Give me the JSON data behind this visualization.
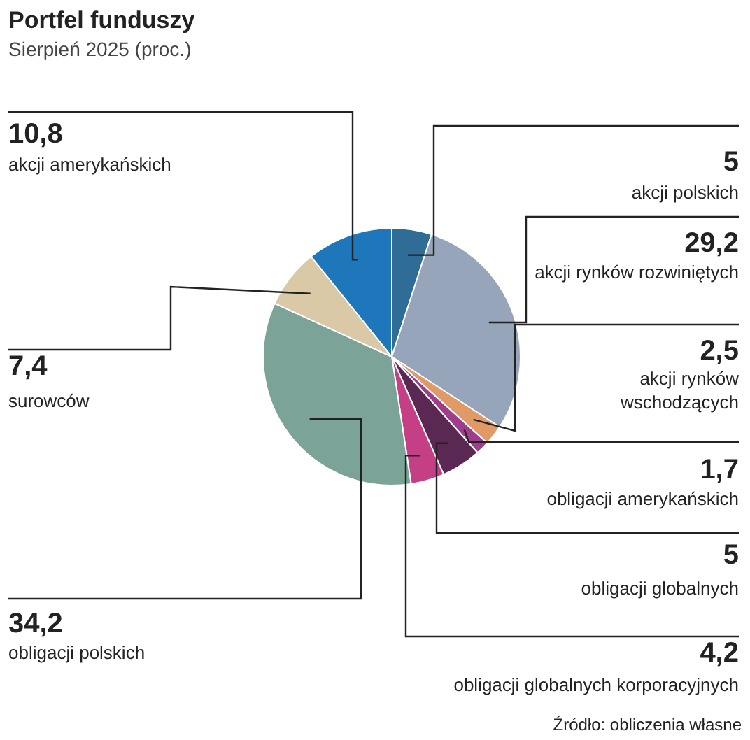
{
  "chart_data": {
    "type": "pie",
    "title": "Portfel funduszy",
    "subtitle": "Sierpień 2025 (proc.)",
    "categories": [
      "akcji polskich",
      "akcji rynków rozwiniętych",
      "akcji rynków wschodzących",
      "obligacji amerykańskich",
      "obligacji globalnych",
      "obligacji globalnych korporacyjnych",
      "obligacji polskich",
      "surowców",
      "akcji amerykańskich"
    ],
    "values": [
      5,
      29.2,
      2.5,
      1.7,
      5,
      4.2,
      34.2,
      7.4,
      10.8
    ],
    "value_labels": [
      "5",
      "29,2",
      "2,5",
      "1,7",
      "5",
      "4,2",
      "34,2",
      "7,4",
      "10,8"
    ],
    "colors": [
      "#2f6d96",
      "#96a5b9",
      "#e09a68",
      "#a03c8c",
      "#5b2853",
      "#c43f86",
      "#7ba398",
      "#d9c9a7",
      "#1f77bb"
    ],
    "annotations": [
      "Źródło: obliczenia własne"
    ]
  }
}
